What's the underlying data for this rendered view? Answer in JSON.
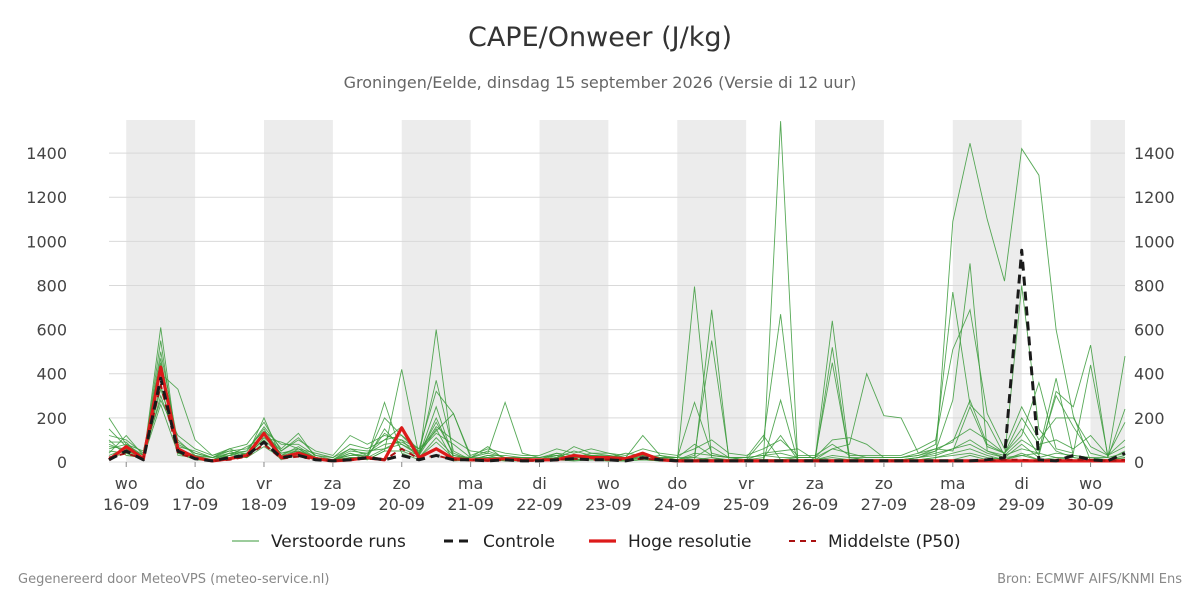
{
  "header": {
    "title": "CAPE/Onweer (J/kg)",
    "subtitle": "Groningen/Eelde, dinsdag 15 september 2026 (Versie di 12 uur)"
  },
  "footer": {
    "left": "Gegenereerd door MeteoVPS (meteo-service.nl)",
    "right": "Bron: ECMWF AIFS/KNMI Ens"
  },
  "colors": {
    "ensemble": "#3a9a3a",
    "control": "#1a1a1a",
    "high_res": "#dd1a1a",
    "median": "#aa1111",
    "weekend_band": "#ececec",
    "grid": "#d9d9d9"
  },
  "chart_data": {
    "type": "line",
    "xlabel": "",
    "ylabel": "",
    "ylim": [
      0,
      1550
    ],
    "xlim": [
      -0.25,
      14.5
    ],
    "grid": true,
    "legend_position": "bottom",
    "y_ticks": [
      0,
      200,
      400,
      600,
      800,
      1000,
      1200,
      1400
    ],
    "x_ticks": [
      {
        "x": 0,
        "day": "wo",
        "date": "16-09"
      },
      {
        "x": 1,
        "day": "do",
        "date": "17-09"
      },
      {
        "x": 2,
        "day": "vr",
        "date": "18-09"
      },
      {
        "x": 3,
        "day": "za",
        "date": "19-09"
      },
      {
        "x": 4,
        "day": "zo",
        "date": "20-09"
      },
      {
        "x": 5,
        "day": "ma",
        "date": "21-09"
      },
      {
        "x": 6,
        "day": "di",
        "date": "22-09"
      },
      {
        "x": 7,
        "day": "wo",
        "date": "23-09"
      },
      {
        "x": 8,
        "day": "do",
        "date": "24-09"
      },
      {
        "x": 9,
        "day": "vr",
        "date": "25-09"
      },
      {
        "x": 10,
        "day": "za",
        "date": "26-09"
      },
      {
        "x": 11,
        "day": "zo",
        "date": "27-09"
      },
      {
        "x": 12,
        "day": "ma",
        "date": "28-09"
      },
      {
        "x": 13,
        "day": "di",
        "date": "29-09"
      },
      {
        "x": 14,
        "day": "wo",
        "date": "30-09"
      }
    ],
    "shaded_periods": [
      [
        0,
        1
      ],
      [
        2,
        3
      ],
      [
        4,
        5
      ],
      [
        6,
        7
      ],
      [
        8,
        9
      ],
      [
        10,
        11
      ],
      [
        12,
        13
      ],
      [
        14,
        14.5
      ]
    ],
    "x": [
      -0.25,
      0,
      0.25,
      0.5,
      0.75,
      1,
      1.25,
      1.5,
      1.75,
      2,
      2.25,
      2.5,
      2.75,
      3,
      3.25,
      3.5,
      3.75,
      4,
      4.25,
      4.5,
      4.75,
      5,
      5.25,
      5.5,
      5.75,
      6,
      6.25,
      6.5,
      6.75,
      7,
      7.25,
      7.5,
      7.75,
      8,
      8.25,
      8.5,
      8.75,
      9,
      9.25,
      9.5,
      9.75,
      10,
      10.25,
      10.5,
      10.75,
      11,
      11.25,
      11.5,
      11.75,
      12,
      12.25,
      12.5,
      12.75,
      13,
      13.25,
      13.5,
      13.75,
      14,
      14.25,
      14.5
    ],
    "series": [
      {
        "name": "Controle",
        "style": "dashed",
        "values": [
          10,
          50,
          10,
          380,
          50,
          15,
          5,
          20,
          30,
          90,
          20,
          30,
          10,
          5,
          10,
          20,
          10,
          30,
          10,
          30,
          10,
          10,
          5,
          10,
          5,
          5,
          10,
          15,
          10,
          10,
          5,
          20,
          10,
          5,
          5,
          5,
          5,
          5,
          5,
          5,
          5,
          5,
          5,
          5,
          5,
          5,
          5,
          5,
          5,
          5,
          5,
          10,
          20,
          960,
          10,
          5,
          30,
          10,
          5,
          40
        ]
      },
      {
        "name": "Hoge resolutie",
        "style": "solid",
        "values": [
          10,
          70,
          15,
          430,
          60,
          20,
          5,
          15,
          30,
          130,
          20,
          40,
          15,
          5,
          10,
          20,
          10,
          155,
          20,
          60,
          15,
          10,
          10,
          15,
          10,
          10,
          10,
          30,
          20,
          20,
          15,
          40,
          10,
          5,
          5,
          5,
          5,
          5,
          5,
          5,
          5,
          5,
          5,
          5,
          5,
          5,
          5,
          5,
          5,
          5,
          5,
          5,
          5,
          5,
          5,
          5,
          5,
          5,
          5,
          5
        ]
      },
      {
        "name": "Middelste (P50)",
        "style": "dashed",
        "values": [
          20,
          40,
          15,
          350,
          40,
          15,
          5,
          10,
          25,
          80,
          15,
          25,
          10,
          5,
          10,
          15,
          10,
          60,
          15,
          30,
          10,
          10,
          5,
          10,
          5,
          5,
          10,
          15,
          10,
          10,
          10,
          15,
          10,
          5,
          5,
          5,
          5,
          5,
          5,
          5,
          5,
          5,
          5,
          5,
          5,
          5,
          5,
          5,
          5,
          5,
          5,
          5,
          10,
          10,
          5,
          10,
          10,
          10,
          5,
          10
        ]
      }
    ],
    "ensemble": {
      "name": "Verstoorde runs",
      "members": [
        [
          30,
          60,
          10,
          550,
          30,
          20,
          10,
          40,
          20,
          90,
          10,
          60,
          10,
          5,
          40,
          10,
          50,
          420,
          30,
          150,
          5,
          10,
          20,
          5,
          10,
          10,
          40,
          10,
          20,
          5,
          10,
          20,
          5,
          5,
          795,
          20,
          5,
          5,
          5,
          1545,
          5,
          5,
          5,
          5,
          5,
          5,
          5,
          5,
          5,
          10,
          30,
          10,
          20,
          30,
          40,
          20,
          10,
          5,
          5,
          10
        ],
        [
          20,
          40,
          10,
          610,
          40,
          10,
          5,
          20,
          30,
          200,
          20,
          40,
          10,
          5,
          20,
          20,
          270,
          40,
          10,
          600,
          10,
          5,
          10,
          10,
          5,
          5,
          10,
          10,
          10,
          5,
          5,
          10,
          5,
          5,
          10,
          690,
          10,
          5,
          5,
          280,
          5,
          5,
          520,
          5,
          5,
          5,
          5,
          10,
          10,
          1090,
          1445,
          1100,
          820,
          1420,
          1300,
          600,
          210,
          5,
          5,
          10
        ],
        [
          60,
          80,
          30,
          350,
          50,
          20,
          10,
          30,
          50,
          150,
          30,
          50,
          20,
          10,
          30,
          40,
          100,
          160,
          40,
          370,
          50,
          10,
          30,
          30,
          20,
          10,
          20,
          50,
          30,
          20,
          10,
          30,
          20,
          10,
          30,
          550,
          20,
          10,
          100,
          670,
          10,
          10,
          640,
          20,
          10,
          10,
          10,
          20,
          50,
          280,
          900,
          50,
          20,
          800,
          150,
          50,
          20,
          10,
          10,
          20
        ],
        [
          100,
          30,
          20,
          300,
          80,
          40,
          20,
          50,
          20,
          110,
          40,
          60,
          40,
          20,
          60,
          50,
          60,
          80,
          30,
          250,
          20,
          20,
          40,
          20,
          20,
          20,
          30,
          20,
          40,
          30,
          20,
          120,
          30,
          20,
          270,
          40,
          20,
          20,
          120,
          10,
          20,
          20,
          450,
          20,
          20,
          20,
          20,
          40,
          80,
          770,
          260,
          180,
          30,
          100,
          50,
          380,
          30,
          20,
          20,
          40
        ],
        [
          200,
          80,
          50,
          400,
          330,
          100,
          30,
          60,
          80,
          180,
          50,
          100,
          50,
          30,
          120,
          80,
          120,
          100,
          60,
          320,
          220,
          30,
          60,
          40,
          30,
          30,
          60,
          40,
          60,
          40,
          30,
          60,
          40,
          30,
          60,
          100,
          40,
          30,
          60,
          100,
          30,
          30,
          80,
          30,
          30,
          30,
          30,
          60,
          100,
          510,
          690,
          220,
          60,
          250,
          100,
          200,
          200,
          70,
          30,
          70
        ],
        [
          80,
          50,
          20,
          470,
          60,
          30,
          10,
          40,
          50,
          160,
          60,
          130,
          20,
          10,
          60,
          30,
          200,
          120,
          60,
          140,
          220,
          20,
          70,
          10,
          10,
          10,
          20,
          70,
          40,
          40,
          20,
          20,
          30,
          10,
          40,
          30,
          20,
          10,
          40,
          50,
          60,
          10,
          60,
          80,
          400,
          210,
          200,
          40,
          60,
          50,
          250,
          70,
          40,
          150,
          30,
          320,
          250,
          530,
          20,
          240
        ],
        [
          120,
          100,
          40,
          280,
          120,
          60,
          30,
          50,
          60,
          140,
          80,
          80,
          30,
          20,
          80,
          60,
          100,
          120,
          40,
          160,
          100,
          50,
          40,
          270,
          40,
          20,
          30,
          20,
          30,
          20,
          40,
          30,
          20,
          20,
          20,
          70,
          20,
          20,
          30,
          20,
          20,
          20,
          100,
          110,
          80,
          20,
          20,
          30,
          60,
          90,
          280,
          80,
          40,
          120,
          360,
          60,
          40,
          440,
          30,
          180
        ],
        [
          50,
          40,
          20,
          500,
          90,
          40,
          20,
          30,
          70,
          110,
          90,
          60,
          20,
          10,
          40,
          20,
          150,
          60,
          30,
          200,
          30,
          20,
          20,
          20,
          10,
          10,
          20,
          20,
          20,
          10,
          10,
          20,
          10,
          10,
          10,
          20,
          10,
          10,
          20,
          120,
          10,
          10,
          30,
          20,
          10,
          10,
          10,
          20,
          40,
          60,
          100,
          50,
          30,
          60,
          40,
          300,
          160,
          40,
          20,
          480
        ],
        [
          150,
          70,
          30,
          450,
          70,
          50,
          20,
          40,
          40,
          130,
          50,
          110,
          30,
          10,
          50,
          40,
          80,
          90,
          50,
          130,
          80,
          20,
          50,
          20,
          20,
          20,
          40,
          30,
          30,
          30,
          20,
          40,
          20,
          20,
          80,
          30,
          20,
          20,
          30,
          40,
          20,
          20,
          60,
          40,
          20,
          20,
          20,
          30,
          50,
          100,
          150,
          100,
          40,
          200,
          80,
          100,
          60,
          120,
          30,
          100
        ],
        [
          40,
          120,
          30,
          330,
          100,
          30,
          20,
          60,
          30,
          100,
          30,
          70,
          20,
          10,
          30,
          30,
          130,
          80,
          40,
          180,
          40,
          10,
          30,
          10,
          10,
          10,
          30,
          10,
          10,
          10,
          10,
          10,
          10,
          10,
          20,
          10,
          10,
          10,
          10,
          10,
          10,
          10,
          20,
          10,
          10,
          10,
          10,
          20,
          30,
          60,
          80,
          40,
          20,
          80,
          20,
          40,
          30,
          20,
          10,
          50
        ],
        [
          70,
          60,
          20,
          260,
          40,
          20,
          10,
          20,
          40,
          120,
          40,
          50,
          20,
          10,
          20,
          20,
          60,
          100,
          20,
          110,
          30,
          10,
          20,
          10,
          10,
          10,
          20,
          10,
          20,
          10,
          10,
          10,
          10,
          10,
          10,
          10,
          10,
          10,
          10,
          10,
          10,
          10,
          10,
          10,
          10,
          10,
          10,
          10,
          20,
          40,
          60,
          30,
          10,
          40,
          10,
          20,
          20,
          10,
          10,
          30
        ],
        [
          90,
          90,
          10,
          420,
          50,
          20,
          5,
          30,
          20,
          70,
          20,
          30,
          10,
          5,
          20,
          10,
          50,
          50,
          20,
          90,
          20,
          5,
          10,
          5,
          5,
          5,
          10,
          5,
          10,
          5,
          5,
          10,
          5,
          5,
          5,
          5,
          5,
          5,
          5,
          5,
          5,
          5,
          10,
          5,
          5,
          5,
          5,
          10,
          20,
          30,
          40,
          20,
          10,
          30,
          10,
          10,
          10,
          10,
          5,
          20
        ]
      ]
    }
  },
  "legend": [
    {
      "key": "ensemble",
      "label": "Verstoorde runs"
    },
    {
      "key": "control",
      "label": "Controle"
    },
    {
      "key": "high_res",
      "label": "Hoge resolutie"
    },
    {
      "key": "median",
      "label": "Middelste (P50)"
    }
  ]
}
